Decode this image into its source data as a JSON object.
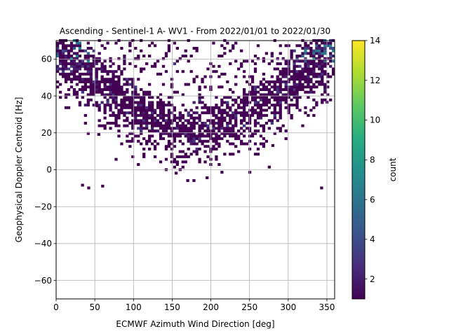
{
  "chart_data": {
    "type": "heatmap",
    "title": "Ascending - Sentinel-1 A- WV1 - From 2022/01/01 to 2022/01/30",
    "xlabel": "ECMWF Azimuth Wind Direction [deg]",
    "ylabel": "Geophysical Doppler Centroid [Hz]",
    "xlim": [
      0,
      360
    ],
    "ylim": [
      -70,
      70
    ],
    "xticks": [
      0,
      50,
      100,
      150,
      200,
      250,
      300,
      350
    ],
    "yticks": [
      -60,
      -40,
      -20,
      0,
      20,
      40,
      60
    ],
    "grid": true,
    "colorbar": {
      "label": "count",
      "min": 1,
      "max": 14,
      "ticks": [
        2,
        4,
        6,
        8,
        10,
        12,
        14
      ],
      "colormap": "viridis"
    },
    "bin_size": {
      "x": 3.6,
      "y": 1.4
    },
    "distribution_summary": "V-shaped density: Doppler centroid near 20 Hz at ~180 deg, rising to ~65 Hz near 0 and 360 deg",
    "isolated_points": [
      {
        "x": 34,
        "y": -9,
        "count": 1
      },
      {
        "x": 42,
        "y": -10.5,
        "count": 1
      },
      {
        "x": 60,
        "y": -9.5,
        "count": 1
      },
      {
        "x": 170,
        "y": -6.5,
        "count": 1
      },
      {
        "x": 178,
        "y": -6.5,
        "count": 1
      },
      {
        "x": 195,
        "y": -5,
        "count": 1
      },
      {
        "x": 155,
        "y": -2.5,
        "count": 1
      },
      {
        "x": 343,
        "y": -10.5,
        "count": 1
      },
      {
        "x": 55,
        "y": 18.5,
        "count": 1
      },
      {
        "x": 280,
        "y": 12.5,
        "count": 1
      },
      {
        "x": 350,
        "y": 36,
        "count": 1
      },
      {
        "x": 348,
        "y": 44.5,
        "count": 1
      },
      {
        "x": 53,
        "y": 34,
        "count": 1
      }
    ]
  }
}
